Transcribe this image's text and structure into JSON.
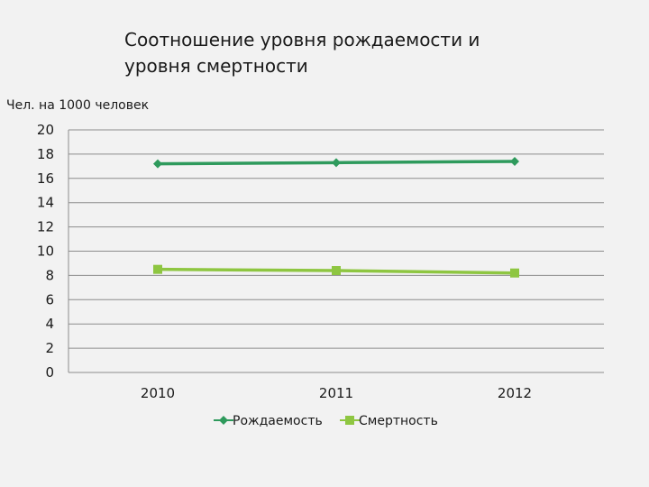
{
  "chart_data": {
    "type": "line",
    "title_line1": "Соотношение уровня рождаемости и",
    "title_line2": "уровня смертности",
    "ylabel": "Чел. на 1000 человек",
    "xlabel": "",
    "categories": [
      "2010",
      "2011",
      "2012"
    ],
    "ylim": [
      0,
      20
    ],
    "yticks": [
      0,
      2,
      4,
      6,
      8,
      10,
      12,
      14,
      16,
      18,
      20
    ],
    "grid": true,
    "legend_position": "bottom",
    "series": [
      {
        "name": "Рождаемость",
        "values": [
          17.2,
          17.3,
          17.4
        ],
        "color": "#2e9a5c",
        "marker": "diamond"
      },
      {
        "name": "Смертность",
        "values": [
          8.5,
          8.4,
          8.2
        ],
        "color": "#8ec641",
        "marker": "square"
      }
    ]
  }
}
